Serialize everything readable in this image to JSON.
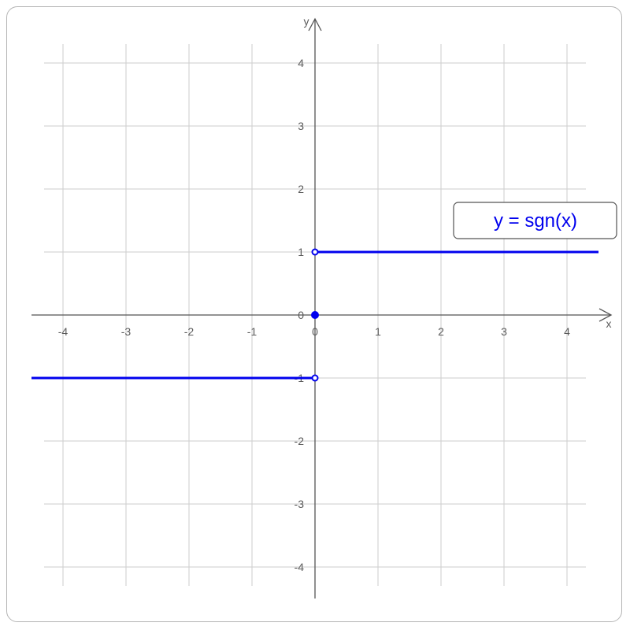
{
  "chart_data": {
    "type": "line",
    "xlabel": "x",
    "ylabel": "y",
    "xlim": [
      -4.5,
      4.5
    ],
    "ylim": [
      -4.5,
      4.5
    ],
    "grid": true,
    "x_ticks": [
      -4,
      -3,
      -2,
      -1,
      0,
      1,
      2,
      3,
      4
    ],
    "y_ticks": [
      -4,
      -3,
      -2,
      -1,
      0,
      1,
      2,
      3,
      4
    ],
    "x_tick_labels": [
      "-4",
      "-3",
      "-2",
      "-1",
      "0",
      "1",
      "2",
      "3",
      "4"
    ],
    "y_tick_labels": [
      "-4",
      "-3",
      "-2",
      "-1",
      "0",
      "1",
      "2",
      "3",
      "4"
    ],
    "legend_label": "y = sgn(x)",
    "legend_position": "right",
    "color": "#0000ee",
    "segments": [
      {
        "x": [
          -4.5,
          0
        ],
        "y": [
          -1,
          -1
        ]
      },
      {
        "x": [
          0,
          4.5
        ],
        "y": [
          1,
          1
        ]
      }
    ],
    "points": [
      {
        "x": 0,
        "y": 1,
        "style": "open"
      },
      {
        "x": 0,
        "y": -1,
        "style": "open"
      },
      {
        "x": 0,
        "y": 0,
        "style": "filled"
      }
    ]
  }
}
